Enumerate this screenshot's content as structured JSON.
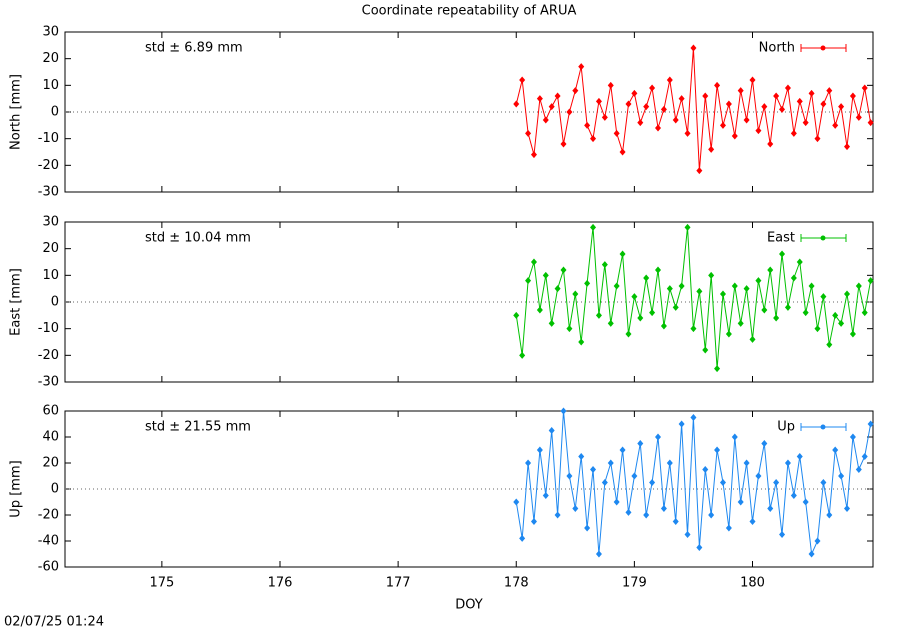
{
  "chart_data": [
    {
      "type": "line",
      "title": "Coordinate repeatability of ARUA",
      "ylabel": "North [mm]",
      "annotation": "std ± 6.89 mm",
      "legend": "top-right",
      "xlim": [
        174.18,
        181.02
      ],
      "ylim": [
        -30,
        30
      ],
      "yticks": [
        -30,
        -20,
        -10,
        0,
        10,
        20,
        30
      ],
      "series": [
        {
          "name": "North",
          "color": "#ff0000",
          "x": [
            178,
            178.05,
            178.1,
            178.15,
            178.2,
            178.25,
            178.3,
            178.35,
            178.4,
            178.45,
            178.5,
            178.55,
            178.6,
            178.65,
            178.7,
            178.75,
            178.8,
            178.85,
            178.9,
            178.95,
            179,
            179.05,
            179.1,
            179.15,
            179.2,
            179.25,
            179.3,
            179.35,
            179.4,
            179.45,
            179.5,
            179.55,
            179.6,
            179.65,
            179.7,
            179.75,
            179.8,
            179.85,
            179.9,
            179.95,
            180,
            180.05,
            180.1,
            180.15,
            180.2,
            180.25,
            180.3,
            180.35,
            180.4,
            180.45,
            180.5,
            180.55,
            180.6,
            180.65,
            180.7,
            180.75,
            180.8,
            180.85,
            180.9,
            180.95,
            181
          ],
          "values": [
            3,
            12,
            -8,
            -16,
            5,
            -3,
            2,
            6,
            -12,
            0,
            8,
            17,
            -5,
            -10,
            4,
            -2,
            10,
            -8,
            -15,
            3,
            7,
            -4,
            2,
            9,
            -6,
            1,
            12,
            -3,
            5,
            -8,
            24,
            -22,
            6,
            -14,
            10,
            -5,
            3,
            -9,
            8,
            -3,
            12,
            -7,
            2,
            -12,
            6,
            1,
            9,
            -8,
            4,
            -4,
            7,
            -10,
            3,
            8,
            -5,
            2,
            -13,
            6,
            -2,
            9,
            -4
          ]
        }
      ]
    },
    {
      "type": "line",
      "ylabel": "East [mm]",
      "annotation": "std ± 10.04 mm",
      "legend": "top-right",
      "xlim": [
        174.18,
        181.02
      ],
      "ylim": [
        -30,
        30
      ],
      "yticks": [
        -30,
        -20,
        -10,
        0,
        10,
        20,
        30
      ],
      "series": [
        {
          "name": "East",
          "color": "#00c000",
          "x": [
            178,
            178.05,
            178.1,
            178.15,
            178.2,
            178.25,
            178.3,
            178.35,
            178.4,
            178.45,
            178.5,
            178.55,
            178.6,
            178.65,
            178.7,
            178.75,
            178.8,
            178.85,
            178.9,
            178.95,
            179,
            179.05,
            179.1,
            179.15,
            179.2,
            179.25,
            179.3,
            179.35,
            179.4,
            179.45,
            179.5,
            179.55,
            179.6,
            179.65,
            179.7,
            179.75,
            179.8,
            179.85,
            179.9,
            179.95,
            180,
            180.05,
            180.1,
            180.15,
            180.2,
            180.25,
            180.3,
            180.35,
            180.4,
            180.45,
            180.5,
            180.55,
            180.6,
            180.65,
            180.7,
            180.75,
            180.8,
            180.85,
            180.9,
            180.95,
            181
          ],
          "values": [
            -5,
            -20,
            8,
            15,
            -3,
            10,
            -8,
            5,
            12,
            -10,
            3,
            -15,
            7,
            28,
            -5,
            14,
            -8,
            6,
            18,
            -12,
            2,
            -6,
            9,
            -4,
            12,
            -9,
            5,
            -2,
            6,
            28,
            -10,
            4,
            -18,
            10,
            -25,
            3,
            -12,
            6,
            -8,
            5,
            -14,
            8,
            -3,
            12,
            -6,
            18,
            -2,
            9,
            15,
            -4,
            6,
            -10,
            2,
            -16,
            -5,
            -8,
            3,
            -12,
            6,
            -4,
            8
          ]
        }
      ]
    },
    {
      "type": "line",
      "ylabel": "Up [mm]",
      "xlabel": "DOY",
      "annotation": "std ± 21.55 mm",
      "legend": "top-right",
      "xlim": [
        174.18,
        181.02
      ],
      "ylim": [
        -60,
        60
      ],
      "yticks": [
        -60,
        -40,
        -20,
        0,
        20,
        40,
        60
      ],
      "xticks": [
        175,
        176,
        177,
        178,
        179,
        180
      ],
      "series": [
        {
          "name": "Up",
          "color": "#1e88f0",
          "x": [
            178,
            178.05,
            178.1,
            178.15,
            178.2,
            178.25,
            178.3,
            178.35,
            178.4,
            178.45,
            178.5,
            178.55,
            178.6,
            178.65,
            178.7,
            178.75,
            178.8,
            178.85,
            178.9,
            178.95,
            179,
            179.05,
            179.1,
            179.15,
            179.2,
            179.25,
            179.3,
            179.35,
            179.4,
            179.45,
            179.5,
            179.55,
            179.6,
            179.65,
            179.7,
            179.75,
            179.8,
            179.85,
            179.9,
            179.95,
            180,
            180.05,
            180.1,
            180.15,
            180.2,
            180.25,
            180.3,
            180.35,
            180.4,
            180.45,
            180.5,
            180.55,
            180.6,
            180.65,
            180.7,
            180.75,
            180.8,
            180.85,
            180.9,
            180.95,
            181
          ],
          "values": [
            -10,
            -38,
            20,
            -25,
            30,
            -5,
            45,
            -20,
            60,
            10,
            -15,
            25,
            -30,
            15,
            -50,
            5,
            20,
            -10,
            30,
            -18,
            10,
            35,
            -20,
            5,
            40,
            -15,
            20,
            -25,
            50,
            -35,
            55,
            -45,
            15,
            -20,
            30,
            5,
            -30,
            40,
            -10,
            20,
            -25,
            10,
            35,
            -15,
            5,
            -35,
            20,
            -5,
            25,
            -10,
            -50,
            -40,
            5,
            -20,
            30,
            10,
            -15,
            40,
            15,
            25,
            50
          ]
        }
      ]
    }
  ],
  "footer": "02/07/25 01:24"
}
